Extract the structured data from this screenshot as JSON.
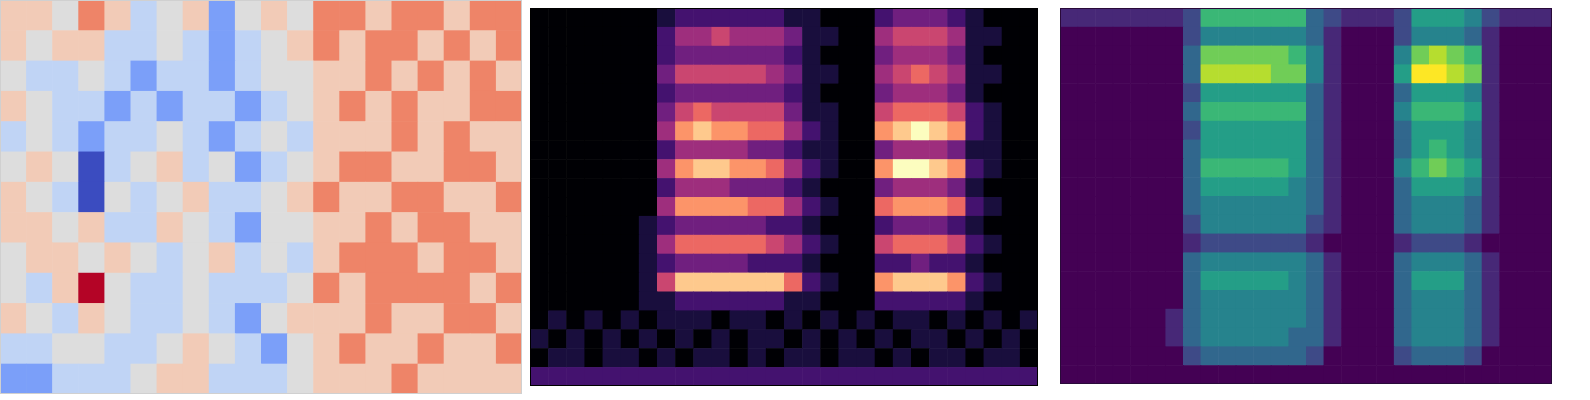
{
  "chart_data": [
    {
      "type": "heatmap",
      "color": "coolwarm",
      "zlim": [
        -3,
        3
      ],
      "xlim": [
        0,
        20
      ],
      "ylim": [
        13,
        0
      ],
      "xticks": [],
      "yticks": [],
      "tick_labels": false,
      "cells": [
        [
          1,
          1,
          0,
          2,
          1,
          -1,
          0,
          1,
          -2,
          0,
          1,
          0,
          2,
          2,
          1,
          2,
          2,
          1,
          2,
          2
        ],
        [
          1,
          0,
          1,
          1,
          -1,
          -1,
          0,
          -1,
          -2,
          -1,
          0,
          1,
          2,
          1,
          2,
          2,
          1,
          2,
          1,
          2
        ],
        [
          0,
          -1,
          -1,
          0,
          -1,
          -2,
          -1,
          -1,
          -2,
          -1,
          0,
          0,
          1,
          1,
          2,
          1,
          2,
          1,
          2,
          1
        ],
        [
          1,
          0,
          -1,
          -1,
          -2,
          -1,
          -2,
          -1,
          -1,
          -2,
          -1,
          0,
          1,
          2,
          1,
          2,
          1,
          1,
          2,
          2
        ],
        [
          -1,
          0,
          -1,
          -2,
          -1,
          -1,
          0,
          -1,
          -2,
          -1,
          0,
          -1,
          1,
          1,
          1,
          2,
          1,
          2,
          1,
          1
        ],
        [
          0,
          1,
          0,
          -3,
          -1,
          0,
          1,
          -1,
          0,
          -2,
          -1,
          0,
          1,
          2,
          2,
          1,
          1,
          2,
          2,
          1
        ],
        [
          1,
          0,
          -1,
          -3,
          0,
          -1,
          0,
          1,
          -1,
          -1,
          0,
          1,
          2,
          1,
          1,
          2,
          2,
          1,
          1,
          2
        ],
        [
          1,
          1,
          0,
          1,
          -1,
          -1,
          1,
          0,
          -1,
          -2,
          0,
          0,
          1,
          1,
          2,
          1,
          2,
          2,
          1,
          1
        ],
        [
          0,
          1,
          1,
          0,
          1,
          0,
          -1,
          0,
          1,
          -1,
          0,
          -1,
          1,
          2,
          2,
          2,
          1,
          2,
          2,
          1
        ],
        [
          0,
          -1,
          1,
          3,
          0,
          -1,
          -1,
          0,
          -1,
          -1,
          -1,
          0,
          2,
          1,
          2,
          2,
          2,
          2,
          1,
          2
        ],
        [
          1,
          0,
          -1,
          1,
          0,
          -1,
          -1,
          0,
          -1,
          -2,
          0,
          1,
          1,
          1,
          2,
          1,
          1,
          2,
          2,
          1
        ],
        [
          -1,
          -1,
          0,
          0,
          -1,
          -1,
          0,
          1,
          0,
          -1,
          -2,
          0,
          1,
          2,
          1,
          1,
          2,
          1,
          1,
          2
        ],
        [
          -2,
          -2,
          -1,
          -1,
          -1,
          0,
          1,
          1,
          -1,
          -1,
          -1,
          0,
          1,
          1,
          1,
          2,
          1,
          1,
          1,
          1
        ]
      ]
    },
    {
      "type": "heatmap",
      "color": "magma",
      "zlim": [
        0,
        9
      ],
      "xlim": [
        0,
        28
      ],
      "ylim": [
        20,
        0
      ],
      "xticks": [],
      "yticks": [],
      "tick_labels": false,
      "cells": [
        [
          0,
          0,
          0,
          0,
          0,
          0,
          0,
          1,
          2,
          2,
          2,
          2,
          2,
          2,
          1,
          1,
          0,
          0,
          0,
          2,
          3,
          3,
          3,
          2,
          1,
          0,
          0,
          0
        ],
        [
          0,
          0,
          0,
          0,
          0,
          0,
          0,
          2,
          4,
          4,
          5,
          4,
          4,
          4,
          3,
          1,
          1,
          0,
          0,
          4,
          5,
          5,
          5,
          4,
          1,
          1,
          0,
          0
        ],
        [
          0,
          0,
          0,
          0,
          0,
          0,
          0,
          2,
          3,
          3,
          3,
          3,
          3,
          3,
          2,
          1,
          0,
          0,
          0,
          3,
          4,
          4,
          4,
          3,
          1,
          0,
          0,
          0
        ],
        [
          0,
          0,
          0,
          0,
          0,
          0,
          0,
          3,
          5,
          5,
          5,
          5,
          5,
          4,
          3,
          1,
          1,
          0,
          0,
          4,
          5,
          6,
          5,
          4,
          1,
          1,
          0,
          0
        ],
        [
          0,
          0,
          0,
          0,
          0,
          0,
          0,
          2,
          3,
          3,
          3,
          3,
          3,
          3,
          2,
          1,
          0,
          0,
          0,
          3,
          4,
          4,
          4,
          3,
          1,
          0,
          0,
          0
        ],
        [
          0,
          0,
          0,
          0,
          0,
          0,
          0,
          3,
          5,
          6,
          5,
          5,
          5,
          5,
          3,
          1,
          1,
          0,
          0,
          5,
          6,
          6,
          6,
          5,
          2,
          1,
          0,
          0
        ],
        [
          0,
          0,
          0,
          0,
          0,
          0,
          0,
          4,
          7,
          8,
          7,
          7,
          6,
          6,
          4,
          2,
          1,
          0,
          0,
          7,
          8,
          9,
          8,
          7,
          2,
          1,
          0,
          0
        ],
        [
          0,
          0,
          0,
          0,
          0,
          0,
          0,
          2,
          4,
          4,
          4,
          4,
          3,
          3,
          2,
          1,
          1,
          0,
          0,
          3,
          4,
          4,
          4,
          3,
          1,
          1,
          0,
          0
        ],
        [
          0,
          0,
          0,
          0,
          0,
          0,
          0,
          4,
          7,
          8,
          8,
          7,
          7,
          6,
          4,
          2,
          1,
          0,
          0,
          7,
          9,
          9,
          8,
          7,
          2,
          1,
          0,
          0
        ],
        [
          0,
          0,
          0,
          0,
          0,
          0,
          0,
          2,
          4,
          4,
          4,
          3,
          3,
          3,
          2,
          1,
          0,
          0,
          0,
          3,
          4,
          4,
          4,
          3,
          1,
          0,
          0,
          0
        ],
        [
          0,
          0,
          0,
          0,
          0,
          0,
          0,
          4,
          7,
          7,
          7,
          7,
          6,
          6,
          4,
          2,
          1,
          0,
          0,
          6,
          7,
          7,
          7,
          6,
          2,
          1,
          0,
          0
        ],
        [
          0,
          0,
          0,
          0,
          0,
          0,
          1,
          2,
          3,
          3,
          3,
          3,
          3,
          2,
          2,
          1,
          0,
          0,
          0,
          2,
          3,
          3,
          3,
          2,
          1,
          0,
          0,
          0
        ],
        [
          0,
          0,
          0,
          0,
          0,
          0,
          1,
          4,
          6,
          6,
          6,
          6,
          6,
          5,
          4,
          2,
          1,
          0,
          0,
          5,
          6,
          6,
          6,
          5,
          2,
          1,
          0,
          0
        ],
        [
          0,
          0,
          0,
          0,
          0,
          0,
          1,
          2,
          3,
          3,
          3,
          3,
          2,
          2,
          2,
          1,
          0,
          0,
          0,
          2,
          2,
          3,
          2,
          2,
          1,
          0,
          0,
          0
        ],
        [
          0,
          0,
          0,
          0,
          0,
          0,
          1,
          5,
          8,
          8,
          8,
          8,
          8,
          8,
          6,
          2,
          1,
          0,
          0,
          7,
          8,
          8,
          8,
          7,
          2,
          1,
          0,
          0
        ],
        [
          0,
          0,
          0,
          0,
          0,
          0,
          1,
          1,
          2,
          2,
          2,
          2,
          2,
          2,
          1,
          1,
          0,
          0,
          0,
          2,
          2,
          2,
          2,
          2,
          1,
          0,
          0,
          0
        ],
        [
          0,
          1,
          0,
          1,
          0,
          1,
          0,
          1,
          1,
          1,
          0,
          1,
          1,
          0,
          1,
          0,
          1,
          0,
          1,
          0,
          1,
          1,
          0,
          1,
          0,
          1,
          0,
          1
        ],
        [
          1,
          0,
          1,
          0,
          1,
          0,
          1,
          0,
          1,
          0,
          1,
          0,
          1,
          1,
          0,
          1,
          0,
          1,
          0,
          1,
          0,
          1,
          1,
          0,
          1,
          0,
          1,
          0
        ],
        [
          0,
          1,
          1,
          0,
          1,
          1,
          0,
          1,
          0,
          1,
          1,
          0,
          1,
          0,
          1,
          1,
          0,
          1,
          1,
          0,
          1,
          0,
          1,
          1,
          0,
          1,
          1,
          0
        ],
        [
          2,
          2,
          2,
          2,
          2,
          2,
          2,
          2,
          2,
          2,
          2,
          2,
          2,
          2,
          2,
          2,
          2,
          2,
          2,
          2,
          2,
          2,
          2,
          2,
          2,
          2,
          2,
          2
        ]
      ]
    },
    {
      "type": "heatmap",
      "color": "viridis",
      "zlim": [
        0,
        9
      ],
      "xlim": [
        0,
        28
      ],
      "ylim": [
        20,
        0
      ],
      "xticks": [],
      "yticks": [],
      "tick_labels": false,
      "cells": [
        [
          1,
          1,
          1,
          1,
          1,
          1,
          1,
          2,
          6,
          6,
          6,
          6,
          6,
          6,
          3,
          2,
          1,
          1,
          1,
          2,
          5,
          5,
          5,
          4,
          2,
          1,
          1,
          1
        ],
        [
          0,
          0,
          0,
          0,
          0,
          0,
          0,
          2,
          4,
          4,
          4,
          4,
          4,
          4,
          3,
          1,
          0,
          0,
          0,
          2,
          4,
          4,
          4,
          3,
          1,
          0,
          0,
          0
        ],
        [
          0,
          0,
          0,
          0,
          0,
          0,
          0,
          3,
          7,
          7,
          7,
          7,
          7,
          6,
          4,
          1,
          0,
          0,
          0,
          4,
          7,
          8,
          7,
          6,
          1,
          0,
          0,
          0
        ],
        [
          0,
          0,
          0,
          0,
          0,
          0,
          0,
          3,
          8,
          8,
          8,
          8,
          7,
          7,
          4,
          1,
          0,
          0,
          0,
          5,
          9,
          9,
          8,
          7,
          1,
          0,
          0,
          0
        ],
        [
          0,
          0,
          0,
          0,
          0,
          0,
          0,
          2,
          5,
          5,
          5,
          5,
          5,
          5,
          3,
          1,
          0,
          0,
          0,
          3,
          5,
          5,
          5,
          4,
          1,
          0,
          0,
          0
        ],
        [
          0,
          0,
          0,
          0,
          0,
          0,
          0,
          3,
          6,
          6,
          6,
          6,
          6,
          6,
          3,
          1,
          0,
          0,
          0,
          4,
          6,
          6,
          6,
          5,
          1,
          0,
          0,
          0
        ],
        [
          0,
          0,
          0,
          0,
          0,
          0,
          0,
          2,
          5,
          5,
          5,
          5,
          5,
          5,
          3,
          1,
          0,
          0,
          0,
          3,
          5,
          5,
          5,
          4,
          1,
          0,
          0,
          0
        ],
        [
          0,
          0,
          0,
          0,
          0,
          0,
          0,
          3,
          5,
          5,
          5,
          5,
          5,
          5,
          3,
          1,
          0,
          0,
          0,
          3,
          5,
          6,
          5,
          4,
          1,
          0,
          0,
          0
        ],
        [
          0,
          0,
          0,
          0,
          0,
          0,
          0,
          3,
          6,
          6,
          6,
          6,
          6,
          5,
          3,
          1,
          0,
          0,
          0,
          4,
          6,
          7,
          6,
          5,
          1,
          0,
          0,
          0
        ],
        [
          0,
          0,
          0,
          0,
          0,
          0,
          0,
          3,
          5,
          5,
          5,
          5,
          5,
          4,
          3,
          1,
          0,
          0,
          0,
          3,
          5,
          5,
          5,
          4,
          1,
          0,
          0,
          0
        ],
        [
          0,
          0,
          0,
          0,
          0,
          0,
          0,
          3,
          4,
          4,
          4,
          4,
          4,
          4,
          3,
          1,
          0,
          0,
          0,
          3,
          4,
          4,
          4,
          3,
          1,
          0,
          0,
          0
        ],
        [
          0,
          0,
          0,
          0,
          0,
          0,
          0,
          2,
          4,
          4,
          4,
          4,
          4,
          4,
          2,
          1,
          0,
          0,
          0,
          3,
          4,
          4,
          4,
          3,
          1,
          0,
          0,
          0
        ],
        [
          0,
          0,
          0,
          0,
          0,
          0,
          0,
          1,
          2,
          2,
          2,
          2,
          2,
          2,
          1,
          0,
          0,
          0,
          0,
          1,
          2,
          2,
          2,
          1,
          0,
          0,
          0,
          0
        ],
        [
          0,
          0,
          0,
          0,
          0,
          0,
          0,
          3,
          4,
          4,
          4,
          4,
          4,
          4,
          3,
          1,
          0,
          0,
          0,
          3,
          4,
          4,
          4,
          3,
          1,
          0,
          0,
          0
        ],
        [
          0,
          0,
          0,
          0,
          0,
          0,
          0,
          3,
          5,
          5,
          5,
          5,
          5,
          4,
          3,
          1,
          0,
          0,
          0,
          3,
          5,
          5,
          5,
          3,
          1,
          0,
          0,
          0
        ],
        [
          0,
          0,
          0,
          0,
          0,
          0,
          0,
          3,
          4,
          4,
          4,
          4,
          4,
          4,
          3,
          1,
          0,
          0,
          0,
          3,
          4,
          4,
          4,
          3,
          1,
          0,
          0,
          0
        ],
        [
          0,
          0,
          0,
          0,
          0,
          0,
          1,
          3,
          4,
          4,
          4,
          4,
          4,
          4,
          3,
          1,
          0,
          0,
          0,
          3,
          4,
          4,
          4,
          3,
          1,
          0,
          0,
          0
        ],
        [
          0,
          0,
          0,
          0,
          0,
          0,
          1,
          3,
          4,
          4,
          4,
          4,
          4,
          3,
          3,
          1,
          0,
          0,
          0,
          3,
          4,
          4,
          4,
          3,
          1,
          0,
          0,
          0
        ],
        [
          0,
          0,
          0,
          0,
          0,
          0,
          0,
          2,
          3,
          3,
          3,
          3,
          3,
          3,
          2,
          0,
          0,
          0,
          0,
          2,
          3,
          3,
          3,
          2,
          0,
          0,
          0,
          0
        ],
        [
          0,
          0,
          0,
          0,
          0,
          0,
          0,
          0,
          0,
          0,
          0,
          0,
          0,
          0,
          0,
          0,
          0,
          0,
          0,
          0,
          0,
          0,
          0,
          0,
          0,
          0,
          0,
          0
        ]
      ]
    }
  ]
}
